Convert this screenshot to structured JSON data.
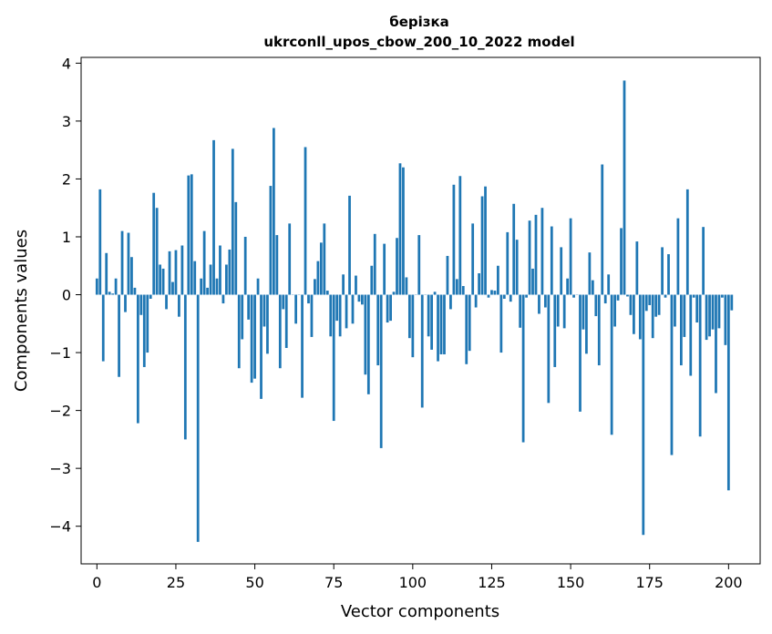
{
  "chart_data": {
    "type": "bar",
    "title_line1": "берізка",
    "title_line2": "ukrconll_upos_cbow_200_10_2022 model",
    "xlabel": "Vector components",
    "ylabel": "Components values",
    "xlim": [
      -5,
      210
    ],
    "ylim": [
      -4.65,
      4.1
    ],
    "xticks": [
      0,
      25,
      50,
      75,
      100,
      125,
      150,
      175,
      200
    ],
    "yticks": [
      -4,
      -3,
      -2,
      -1,
      0,
      1,
      2,
      3,
      4
    ],
    "ytick_labels": [
      "−4",
      "−3",
      "−2",
      "−1",
      "0",
      "1",
      "2",
      "3",
      "4"
    ],
    "bar_color": "#1f77b4",
    "values": [
      0.28,
      1.82,
      -1.15,
      0.72,
      0.05,
      0.02,
      0.28,
      -1.42,
      1.1,
      -0.3,
      1.07,
      0.65,
      0.12,
      -2.22,
      -0.35,
      -1.25,
      -1.0,
      -0.07,
      1.76,
      1.5,
      0.52,
      0.45,
      -0.25,
      0.75,
      0.22,
      0.77,
      -0.38,
      0.85,
      -2.5,
      2.06,
      2.08,
      0.58,
      -4.27,
      0.28,
      1.1,
      0.12,
      0.52,
      2.67,
      0.28,
      0.85,
      -0.15,
      0.52,
      0.78,
      2.52,
      1.6,
      -1.27,
      -0.77,
      1.0,
      -0.43,
      -1.52,
      -1.45,
      0.28,
      -1.8,
      -0.55,
      -1.02,
      1.88,
      2.88,
      1.03,
      -1.27,
      -0.25,
      -0.92,
      1.23,
      0.0,
      -0.5,
      0.0,
      -1.78,
      2.55,
      -0.15,
      -0.73,
      0.27,
      0.58,
      0.9,
      1.23,
      0.07,
      -0.72,
      -2.18,
      -0.45,
      -0.72,
      0.35,
      -0.58,
      1.71,
      -0.5,
      0.33,
      -0.12,
      -0.17,
      -1.38,
      -1.72,
      0.5,
      1.05,
      -1.22,
      -2.65,
      0.88,
      -0.48,
      -0.45,
      0.05,
      0.98,
      2.27,
      2.2,
      0.3,
      -0.75,
      -1.08,
      0.0,
      1.03,
      -1.95,
      0.0,
      -0.72,
      -0.95,
      0.05,
      -1.15,
      -1.03,
      -1.03,
      0.67,
      -0.25,
      1.9,
      0.27,
      2.05,
      0.15,
      -1.2,
      -0.97,
      1.23,
      -0.22,
      0.37,
      1.7,
      1.87,
      -0.05,
      0.08,
      0.07,
      0.5,
      -1.0,
      -0.07,
      1.08,
      -0.12,
      1.57,
      0.95,
      -0.57,
      -2.55,
      -0.05,
      1.28,
      0.45,
      1.38,
      -0.33,
      1.5,
      -0.22,
      -1.87,
      1.18,
      -1.25,
      -0.55,
      0.82,
      -0.58,
      0.28,
      1.32,
      -0.05,
      0.0,
      -2.02,
      -0.6,
      -1.02,
      0.73,
      0.25,
      -0.37,
      -1.22,
      2.25,
      -0.15,
      0.35,
      -2.42,
      -0.55,
      -0.1,
      1.15,
      3.7,
      -0.03,
      -0.35,
      -0.68,
      0.92,
      -0.77,
      -4.15,
      -0.28,
      -0.18,
      -0.75,
      -0.38,
      -0.35,
      0.82,
      -0.05,
      0.7,
      -2.77,
      -0.55,
      1.32,
      -1.22,
      -0.73,
      1.82,
      -1.4,
      -0.05,
      -0.48,
      -2.45,
      1.17,
      -0.78,
      -0.72,
      -0.6,
      -1.7,
      -0.58,
      -0.05,
      -0.87,
      -3.38,
      -0.27
    ]
  }
}
